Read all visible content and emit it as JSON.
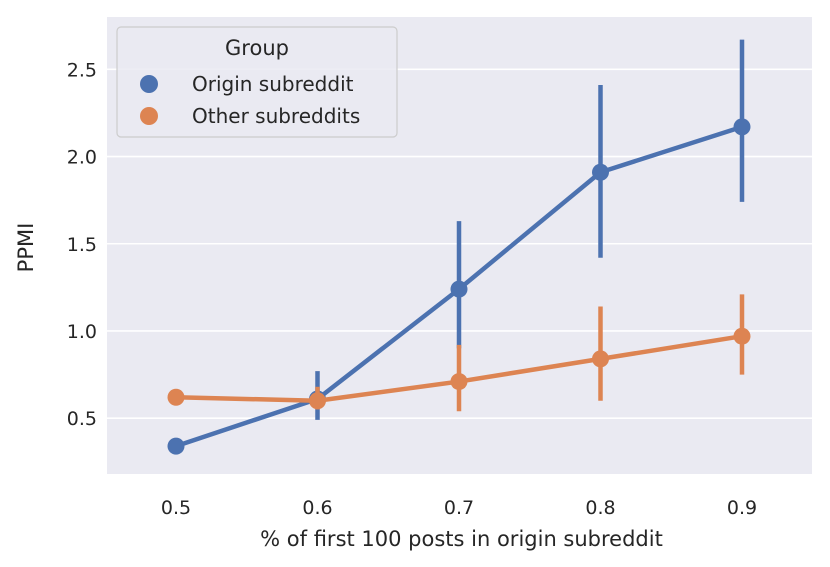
{
  "chart_data": {
    "type": "line",
    "title": "",
    "xlabel": "% of first 100 posts in origin subreddit",
    "ylabel": "PPMI",
    "categories": [
      "0.5",
      "0.6",
      "0.7",
      "0.8",
      "0.9"
    ],
    "y_ticks": [
      "0.5",
      "1.0",
      "1.5",
      "2.0",
      "2.5"
    ],
    "y_tick_values": [
      0.5,
      1.0,
      1.5,
      2.0,
      2.5
    ],
    "ylim": [
      0.18,
      2.8
    ],
    "grid": true,
    "legend": {
      "title": "Group",
      "placement": "top-left"
    },
    "series": [
      {
        "name": "Origin subreddit",
        "color": "#4c72b0",
        "values": [
          0.34,
          0.61,
          1.24,
          1.91,
          2.17
        ],
        "ci_low": [
          0.32,
          0.49,
          0.9,
          1.42,
          1.74
        ],
        "ci_high": [
          0.37,
          0.77,
          1.63,
          2.41,
          2.67
        ]
      },
      {
        "name": "Other subreddits",
        "color": "#dd8452",
        "values": [
          0.62,
          0.6,
          0.71,
          0.84,
          0.97
        ],
        "ci_low": [
          0.61,
          0.55,
          0.54,
          0.6,
          0.75
        ],
        "ci_high": [
          0.64,
          0.68,
          0.92,
          1.14,
          1.21
        ]
      }
    ],
    "background_color": "#eaeaf2"
  }
}
